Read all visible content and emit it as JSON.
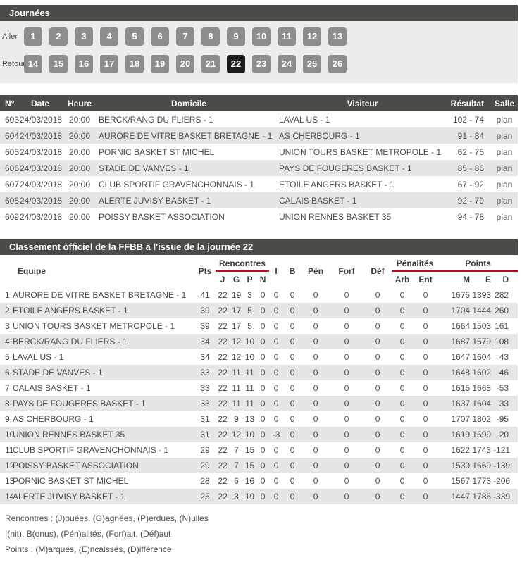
{
  "colors": {
    "bar_bg": "#4b4b48",
    "panel_bg": "#ececec",
    "button_bg": "#8d8d8d",
    "button_selected_bg": "#1b1b1b",
    "alt_row_bg": "#e6e6e6",
    "text": "#4a4a4a",
    "red_line": "#b2111b"
  },
  "journees": {
    "title": "Journées",
    "selected": "22",
    "rows": [
      {
        "label": "Aller",
        "buttons": [
          "1",
          "2",
          "3",
          "4",
          "5",
          "6",
          "7",
          "8",
          "9",
          "10",
          "11",
          "12",
          "13"
        ]
      },
      {
        "label": "Retour",
        "buttons": [
          "14",
          "15",
          "16",
          "17",
          "18",
          "19",
          "20",
          "21",
          "22",
          "23",
          "24",
          "25",
          "26"
        ]
      }
    ]
  },
  "results": {
    "columns": [
      "N°",
      "Date",
      "Heure",
      "Domicile",
      "Visiteur",
      "Résultat",
      "Salle"
    ],
    "rows": [
      [
        "603",
        "24/03/2018",
        "20:00",
        "BERCK/RANG DU FLIERS - 1",
        "LAVAL US - 1",
        "102 - 74",
        "plan"
      ],
      [
        "604",
        "24/03/2018",
        "20:00",
        "AURORE DE VITRE BASKET BRETAGNE - 1",
        "AS CHERBOURG - 1",
        "91 - 84",
        "plan"
      ],
      [
        "605",
        "24/03/2018",
        "20:00",
        "PORNIC BASKET ST MICHEL",
        "UNION TOURS BASKET METROPOLE - 1",
        "62 - 75",
        "plan"
      ],
      [
        "606",
        "24/03/2018",
        "20:00",
        "STADE DE VANVES - 1",
        "PAYS DE FOUGERES BASKET - 1",
        "85 - 86",
        "plan"
      ],
      [
        "607",
        "24/03/2018",
        "20:00",
        "CLUB SPORTIF GRAVENCHONNAIS - 1",
        "ETOILE ANGERS BASKET - 1",
        "67 - 92",
        "plan"
      ],
      [
        "608",
        "24/03/2018",
        "20:00",
        "ALERTE JUVISY BASKET - 1",
        "CALAIS BASKET - 1",
        "92 - 79",
        "plan"
      ],
      [
        "609",
        "24/03/2018",
        "20:00",
        "POISSY BASKET ASSOCIATION",
        "UNION RENNES BASKET 35",
        "94 - 78",
        "plan"
      ]
    ]
  },
  "standings": {
    "title": "Classement officiel de la FFBB à l'issue de la journée 22",
    "header": {
      "equipe": "Equipe",
      "pts": "Pts",
      "groups": {
        "rencontres": "Rencontres",
        "penalites": "Pénalités",
        "points": "Points"
      },
      "mid": {
        "i": "I",
        "b": "B",
        "pen": "Pén",
        "forf": "Forf",
        "def": "Déf"
      },
      "sub": {
        "j": "J",
        "g": "G",
        "p": "P",
        "n": "N",
        "arb": "Arb",
        "ent": "Ent",
        "m": "M",
        "e": "E",
        "d": "D"
      }
    },
    "rows": [
      {
        "rank": "1",
        "team": "AURORE DE VITRE BASKET BRETAGNE - 1",
        "values": [
          "41",
          "22",
          "19",
          "3",
          "0",
          "0",
          "0",
          "0",
          "0",
          "0",
          "0",
          "0",
          "1675",
          "1393",
          "282"
        ]
      },
      {
        "rank": "2",
        "team": "ETOILE ANGERS BASKET - 1",
        "values": [
          "39",
          "22",
          "17",
          "5",
          "0",
          "0",
          "0",
          "0",
          "0",
          "0",
          "0",
          "0",
          "1704",
          "1444",
          "260"
        ]
      },
      {
        "rank": "3",
        "team": "UNION TOURS BASKET METROPOLE - 1",
        "values": [
          "39",
          "22",
          "17",
          "5",
          "0",
          "0",
          "0",
          "0",
          "0",
          "0",
          "0",
          "0",
          "1664",
          "1503",
          "161"
        ]
      },
      {
        "rank": "4",
        "team": "BERCK/RANG DU FLIERS - 1",
        "values": [
          "34",
          "22",
          "12",
          "10",
          "0",
          "0",
          "0",
          "0",
          "0",
          "0",
          "0",
          "0",
          "1687",
          "1579",
          "108"
        ]
      },
      {
        "rank": "5",
        "team": "LAVAL US - 1",
        "values": [
          "34",
          "22",
          "12",
          "10",
          "0",
          "0",
          "0",
          "0",
          "0",
          "0",
          "0",
          "0",
          "1647",
          "1604",
          "43"
        ]
      },
      {
        "rank": "6",
        "team": "STADE DE VANVES - 1",
        "values": [
          "33",
          "22",
          "11",
          "11",
          "0",
          "0",
          "0",
          "0",
          "0",
          "0",
          "0",
          "0",
          "1648",
          "1602",
          "46"
        ]
      },
      {
        "rank": "7",
        "team": "CALAIS BASKET - 1",
        "values": [
          "33",
          "22",
          "11",
          "11",
          "0",
          "0",
          "0",
          "0",
          "0",
          "0",
          "0",
          "0",
          "1615",
          "1668",
          "-53"
        ]
      },
      {
        "rank": "8",
        "team": "PAYS DE FOUGERES BASKET - 1",
        "values": [
          "33",
          "22",
          "11",
          "11",
          "0",
          "0",
          "0",
          "0",
          "0",
          "0",
          "0",
          "0",
          "1637",
          "1604",
          "33"
        ]
      },
      {
        "rank": "9",
        "team": "AS CHERBOURG - 1",
        "values": [
          "31",
          "22",
          "9",
          "13",
          "0",
          "0",
          "0",
          "0",
          "0",
          "0",
          "0",
          "0",
          "1707",
          "1802",
          "-95"
        ]
      },
      {
        "rank": "10",
        "team": "UNION RENNES BASKET 35",
        "values": [
          "31",
          "22",
          "12",
          "10",
          "0",
          "-3",
          "0",
          "0",
          "0",
          "0",
          "0",
          "0",
          "1619",
          "1599",
          "20"
        ]
      },
      {
        "rank": "11",
        "team": "CLUB SPORTIF GRAVENCHONNAIS - 1",
        "values": [
          "29",
          "22",
          "7",
          "15",
          "0",
          "0",
          "0",
          "0",
          "0",
          "0",
          "0",
          "0",
          "1622",
          "1743",
          "-121"
        ]
      },
      {
        "rank": "12",
        "team": "POISSY BASKET ASSOCIATION",
        "values": [
          "29",
          "22",
          "7",
          "15",
          "0",
          "0",
          "0",
          "0",
          "0",
          "0",
          "0",
          "0",
          "1530",
          "1669",
          "-139"
        ]
      },
      {
        "rank": "13",
        "team": "PORNIC BASKET ST MICHEL",
        "values": [
          "28",
          "22",
          "6",
          "16",
          "0",
          "0",
          "0",
          "0",
          "0",
          "0",
          "0",
          "0",
          "1567",
          "1773",
          "-206"
        ]
      },
      {
        "rank": "14",
        "team": "ALERTE JUVISY BASKET - 1",
        "values": [
          "25",
          "22",
          "3",
          "19",
          "0",
          "0",
          "0",
          "0",
          "0",
          "0",
          "0",
          "0",
          "1447",
          "1786",
          "-339"
        ]
      }
    ],
    "legend": [
      "Rencontres : (J)ouées, (G)agnées, (P)erdues, (N)ulles",
      "I(nit), B(onus), (Pén)alités, (Forf)ait, (Déf)aut",
      "Points : (M)arqués, (E)ncaissés, (D)ifférence"
    ]
  }
}
